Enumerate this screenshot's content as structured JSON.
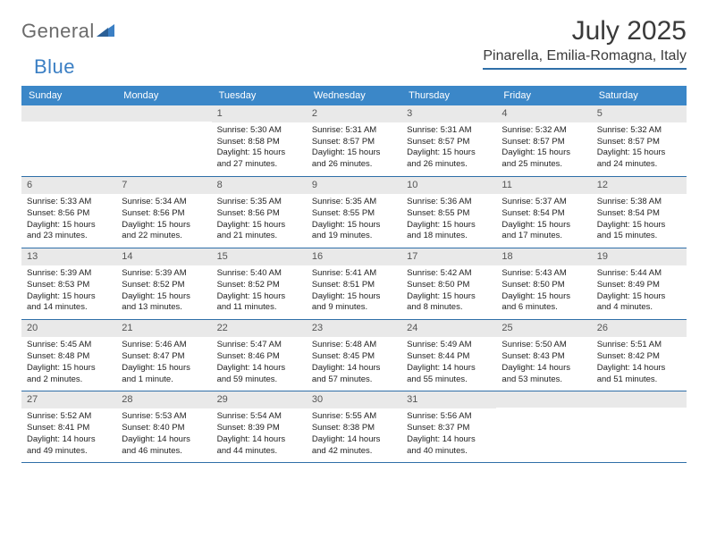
{
  "logo": {
    "text1": "General",
    "text2": "Blue"
  },
  "title": "July 2025",
  "location": "Pinarella, Emilia-Romagna, Italy",
  "colors": {
    "header_bg": "#3b87c8",
    "header_text": "#ffffff",
    "cell_num_bg": "#e9e9e9",
    "week_border": "#2f6fa8",
    "logo_gray": "#6b6b6b",
    "logo_blue": "#3b7fc4"
  },
  "dayNames": [
    "Sunday",
    "Monday",
    "Tuesday",
    "Wednesday",
    "Thursday",
    "Friday",
    "Saturday"
  ],
  "weeks": [
    [
      {
        "n": "",
        "sunrise": "",
        "sunset": "",
        "daylight": ""
      },
      {
        "n": "",
        "sunrise": "",
        "sunset": "",
        "daylight": ""
      },
      {
        "n": "1",
        "sunrise": "5:30 AM",
        "sunset": "8:58 PM",
        "daylight": "15 hours and 27 minutes."
      },
      {
        "n": "2",
        "sunrise": "5:31 AM",
        "sunset": "8:57 PM",
        "daylight": "15 hours and 26 minutes."
      },
      {
        "n": "3",
        "sunrise": "5:31 AM",
        "sunset": "8:57 PM",
        "daylight": "15 hours and 26 minutes."
      },
      {
        "n": "4",
        "sunrise": "5:32 AM",
        "sunset": "8:57 PM",
        "daylight": "15 hours and 25 minutes."
      },
      {
        "n": "5",
        "sunrise": "5:32 AM",
        "sunset": "8:57 PM",
        "daylight": "15 hours and 24 minutes."
      }
    ],
    [
      {
        "n": "6",
        "sunrise": "5:33 AM",
        "sunset": "8:56 PM",
        "daylight": "15 hours and 23 minutes."
      },
      {
        "n": "7",
        "sunrise": "5:34 AM",
        "sunset": "8:56 PM",
        "daylight": "15 hours and 22 minutes."
      },
      {
        "n": "8",
        "sunrise": "5:35 AM",
        "sunset": "8:56 PM",
        "daylight": "15 hours and 21 minutes."
      },
      {
        "n": "9",
        "sunrise": "5:35 AM",
        "sunset": "8:55 PM",
        "daylight": "15 hours and 19 minutes."
      },
      {
        "n": "10",
        "sunrise": "5:36 AM",
        "sunset": "8:55 PM",
        "daylight": "15 hours and 18 minutes."
      },
      {
        "n": "11",
        "sunrise": "5:37 AM",
        "sunset": "8:54 PM",
        "daylight": "15 hours and 17 minutes."
      },
      {
        "n": "12",
        "sunrise": "5:38 AM",
        "sunset": "8:54 PM",
        "daylight": "15 hours and 15 minutes."
      }
    ],
    [
      {
        "n": "13",
        "sunrise": "5:39 AM",
        "sunset": "8:53 PM",
        "daylight": "15 hours and 14 minutes."
      },
      {
        "n": "14",
        "sunrise": "5:39 AM",
        "sunset": "8:52 PM",
        "daylight": "15 hours and 13 minutes."
      },
      {
        "n": "15",
        "sunrise": "5:40 AM",
        "sunset": "8:52 PM",
        "daylight": "15 hours and 11 minutes."
      },
      {
        "n": "16",
        "sunrise": "5:41 AM",
        "sunset": "8:51 PM",
        "daylight": "15 hours and 9 minutes."
      },
      {
        "n": "17",
        "sunrise": "5:42 AM",
        "sunset": "8:50 PM",
        "daylight": "15 hours and 8 minutes."
      },
      {
        "n": "18",
        "sunrise": "5:43 AM",
        "sunset": "8:50 PM",
        "daylight": "15 hours and 6 minutes."
      },
      {
        "n": "19",
        "sunrise": "5:44 AM",
        "sunset": "8:49 PM",
        "daylight": "15 hours and 4 minutes."
      }
    ],
    [
      {
        "n": "20",
        "sunrise": "5:45 AM",
        "sunset": "8:48 PM",
        "daylight": "15 hours and 2 minutes."
      },
      {
        "n": "21",
        "sunrise": "5:46 AM",
        "sunset": "8:47 PM",
        "daylight": "15 hours and 1 minute."
      },
      {
        "n": "22",
        "sunrise": "5:47 AM",
        "sunset": "8:46 PM",
        "daylight": "14 hours and 59 minutes."
      },
      {
        "n": "23",
        "sunrise": "5:48 AM",
        "sunset": "8:45 PM",
        "daylight": "14 hours and 57 minutes."
      },
      {
        "n": "24",
        "sunrise": "5:49 AM",
        "sunset": "8:44 PM",
        "daylight": "14 hours and 55 minutes."
      },
      {
        "n": "25",
        "sunrise": "5:50 AM",
        "sunset": "8:43 PM",
        "daylight": "14 hours and 53 minutes."
      },
      {
        "n": "26",
        "sunrise": "5:51 AM",
        "sunset": "8:42 PM",
        "daylight": "14 hours and 51 minutes."
      }
    ],
    [
      {
        "n": "27",
        "sunrise": "5:52 AM",
        "sunset": "8:41 PM",
        "daylight": "14 hours and 49 minutes."
      },
      {
        "n": "28",
        "sunrise": "5:53 AM",
        "sunset": "8:40 PM",
        "daylight": "14 hours and 46 minutes."
      },
      {
        "n": "29",
        "sunrise": "5:54 AM",
        "sunset": "8:39 PM",
        "daylight": "14 hours and 44 minutes."
      },
      {
        "n": "30",
        "sunrise": "5:55 AM",
        "sunset": "8:38 PM",
        "daylight": "14 hours and 42 minutes."
      },
      {
        "n": "31",
        "sunrise": "5:56 AM",
        "sunset": "8:37 PM",
        "daylight": "14 hours and 40 minutes."
      },
      {
        "n": "",
        "sunrise": "",
        "sunset": "",
        "daylight": ""
      },
      {
        "n": "",
        "sunrise": "",
        "sunset": "",
        "daylight": ""
      }
    ]
  ],
  "labels": {
    "sunrise": "Sunrise:",
    "sunset": "Sunset:",
    "daylight": "Daylight:"
  }
}
